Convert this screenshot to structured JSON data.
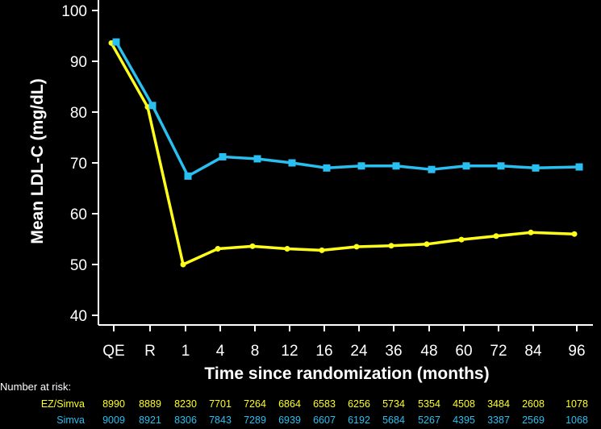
{
  "chart_data": {
    "type": "line",
    "categories": [
      "QE",
      "R",
      "1",
      "4",
      "8",
      "12",
      "16",
      "24",
      "36",
      "48",
      "60",
      "72",
      "84",
      "96"
    ],
    "xlabel": "Time since randomization (months)",
    "ylabel": "Mean LDL-C (mg/dL)",
    "ylim": [
      40,
      100
    ],
    "yticks": [
      40,
      50,
      60,
      70,
      80,
      90,
      100
    ],
    "grid": false,
    "series": [
      {
        "name": "EZ/Simva",
        "color": "#ffff1a",
        "marker": "circle",
        "values": [
          93.6,
          81.0,
          50.0,
          53.1,
          53.6,
          53.1,
          52.8,
          53.5,
          53.7,
          54.0,
          54.9,
          55.6,
          56.3,
          56.0
        ]
      },
      {
        "name": "Simva",
        "color": "#29bff0",
        "marker": "square",
        "values": [
          93.8,
          81.3,
          67.4,
          71.2,
          70.8,
          70.0,
          69.0,
          69.4,
          69.4,
          68.7,
          69.4,
          69.4,
          69.0,
          69.2
        ]
      }
    ]
  },
  "risk_table": {
    "title": "Number at risk:",
    "rows": [
      {
        "label": "EZ/Simva",
        "color": "#ffff1a",
        "values": [
          "8990",
          "8889",
          "8230",
          "7701",
          "7264",
          "6864",
          "6583",
          "6256",
          "5734",
          "5354",
          "4508",
          "3484",
          "2608",
          "1078"
        ]
      },
      {
        "label": "Simva",
        "color": "#29bff0",
        "values": [
          "9009",
          "8921",
          "8306",
          "7843",
          "7289",
          "6939",
          "6607",
          "6192",
          "5684",
          "5267",
          "4395",
          "3387",
          "2569",
          "1068"
        ]
      }
    ]
  }
}
